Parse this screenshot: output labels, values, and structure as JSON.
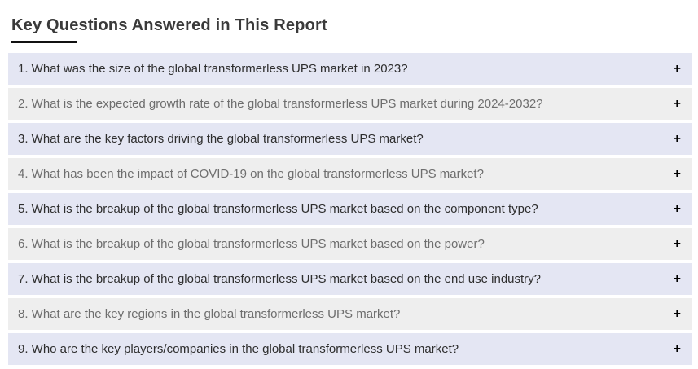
{
  "page": {
    "title": "Key Questions Answered in This Report"
  },
  "accordion": {
    "expand_symbol": "+",
    "items": [
      {
        "question": "1. What was the size of the global transformerless UPS market in 2023?"
      },
      {
        "question": "2. What is the expected growth rate of the global transformerless UPS market during 2024-2032?"
      },
      {
        "question": "3. What are the key factors driving the global transformerless UPS market?"
      },
      {
        "question": "4. What has been the impact of COVID-19 on the global transformerless UPS market?"
      },
      {
        "question": "5. What is the breakup of the global transformerless UPS market based on the component type?"
      },
      {
        "question": "6. What is the breakup of the global transformerless UPS market based on the power?"
      },
      {
        "question": "7. What is the breakup of the global transformerless UPS market based on the end use industry?"
      },
      {
        "question": "8. What are the key regions in the global transformerless UPS market?"
      },
      {
        "question": "9. Who are the key players/companies in the global transformerless UPS market?"
      }
    ]
  },
  "colors": {
    "row_highlight_bg": "#e4e6f3",
    "row_alt_bg": "#eeeeee",
    "row_highlight_text": "#2e2e2e",
    "row_alt_text": "#6e6e6e",
    "title_text": "#3a3a3a",
    "title_underline": "#111111",
    "expand_icon": "#000000"
  }
}
